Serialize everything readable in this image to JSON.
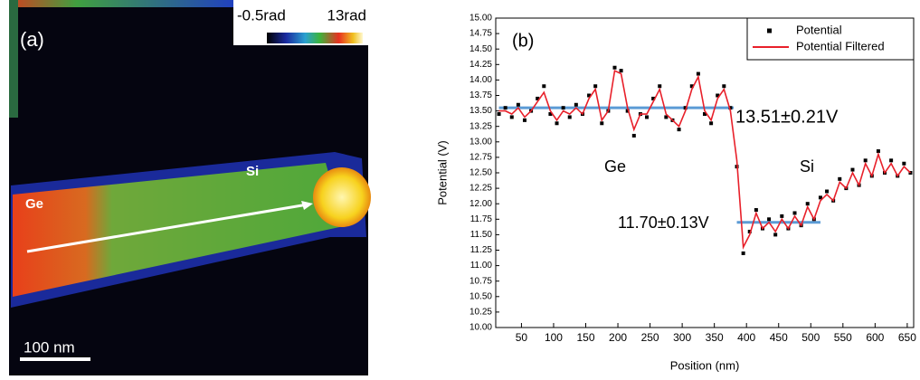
{
  "image_panel": {
    "label": "(a)",
    "region_left": "Ge",
    "region_right": "Si",
    "scale_bar": "100 nm",
    "colorbar_min": "-0.5rad",
    "colorbar_max": "13rad"
  },
  "chart_data": {
    "type": "line",
    "panel_label": "(b)",
    "x_label": "Position (nm)",
    "y_label": "Potential (V)",
    "xlim": [
      10,
      660
    ],
    "ylim": [
      10,
      15
    ],
    "xticks": [
      50,
      100,
      150,
      200,
      250,
      300,
      350,
      400,
      450,
      500,
      550,
      600,
      650
    ],
    "yticks": [
      {
        "value": 10,
        "label": "10.00"
      },
      {
        "value": 10.25,
        "label": "10.25"
      },
      {
        "value": 10.5,
        "label": "10.50"
      },
      {
        "value": 10.75,
        "label": "10.75"
      },
      {
        "value": 11,
        "label": "11.00"
      },
      {
        "value": 11.25,
        "label": "11.25"
      },
      {
        "value": 11.5,
        "label": "11.50"
      },
      {
        "value": 11.75,
        "label": "11.75"
      },
      {
        "value": 12,
        "label": "12.00"
      },
      {
        "value": 12.25,
        "label": "12.25"
      },
      {
        "value": 12.5,
        "label": "12.50"
      },
      {
        "value": 12.75,
        "label": "12.75"
      },
      {
        "value": 13,
        "label": "13.00"
      },
      {
        "value": 13.25,
        "label": "13.25"
      },
      {
        "value": 13.5,
        "label": "13.50"
      },
      {
        "value": 13.75,
        "label": "13.75"
      },
      {
        "value": 14,
        "label": "14.00"
      },
      {
        "value": 14.25,
        "label": "14.25"
      },
      {
        "value": 14.5,
        "label": "14.50"
      },
      {
        "value": 14.75,
        "label": "14.75"
      },
      {
        "value": 15,
        "label": "15.00"
      }
    ],
    "x": [
      15,
      25,
      35,
      45,
      55,
      65,
      75,
      85,
      95,
      105,
      115,
      125,
      135,
      145,
      155,
      165,
      175,
      185,
      195,
      205,
      215,
      225,
      235,
      245,
      255,
      265,
      275,
      285,
      295,
      305,
      315,
      325,
      335,
      345,
      355,
      365,
      375,
      385,
      395,
      405,
      415,
      425,
      435,
      445,
      455,
      465,
      475,
      485,
      495,
      505,
      515,
      525,
      535,
      545,
      555,
      565,
      575,
      585,
      595,
      605,
      615,
      625,
      635,
      645,
      655
    ],
    "series": [
      {
        "name": "Potential",
        "mode": "markers",
        "color": "#000000",
        "values": [
          13.45,
          13.55,
          13.4,
          13.6,
          13.35,
          13.5,
          13.7,
          13.9,
          13.45,
          13.3,
          13.55,
          13.4,
          13.6,
          13.45,
          13.75,
          13.9,
          13.3,
          13.5,
          14.2,
          14.15,
          13.5,
          13.1,
          13.45,
          13.4,
          13.7,
          13.9,
          13.4,
          13.35,
          13.2,
          13.55,
          13.9,
          14.1,
          13.45,
          13.3,
          13.75,
          13.9,
          13.55,
          12.6,
          11.2,
          11.55,
          11.9,
          11.6,
          11.75,
          11.5,
          11.8,
          11.6,
          11.85,
          11.65,
          12.0,
          11.75,
          12.1,
          12.2,
          12.05,
          12.4,
          12.25,
          12.55,
          12.3,
          12.7,
          12.45,
          12.85,
          12.5,
          12.7,
          12.45,
          12.65,
          12.5
        ]
      },
      {
        "name": "Potential Filtered",
        "mode": "line",
        "color": "#e8202a",
        "values": [
          13.5,
          13.5,
          13.45,
          13.55,
          13.4,
          13.5,
          13.65,
          13.8,
          13.5,
          13.35,
          13.5,
          13.45,
          13.55,
          13.45,
          13.7,
          13.85,
          13.35,
          13.5,
          14.15,
          14.1,
          13.55,
          13.2,
          13.45,
          13.45,
          13.65,
          13.85,
          13.45,
          13.35,
          13.25,
          13.5,
          13.85,
          14.05,
          13.5,
          13.35,
          13.7,
          13.85,
          13.5,
          12.7,
          11.3,
          11.5,
          11.85,
          11.6,
          11.7,
          11.55,
          11.75,
          11.6,
          11.8,
          11.65,
          11.95,
          11.75,
          12.05,
          12.15,
          12.05,
          12.35,
          12.25,
          12.5,
          12.3,
          12.65,
          12.45,
          12.8,
          12.5,
          12.65,
          12.45,
          12.6,
          12.5
        ]
      }
    ],
    "reference_lines": [
      {
        "x": [
          15,
          380
        ],
        "y": 13.55,
        "color": "#5b9bd5"
      },
      {
        "x": [
          385,
          515
        ],
        "y": 11.7,
        "color": "#5b9bd5"
      }
    ],
    "annotations": [
      {
        "text": "13.51±0.21V"
      },
      {
        "text": "11.70±0.13V"
      },
      {
        "text": "Ge"
      },
      {
        "text": "Si"
      }
    ],
    "legend": "upper right"
  }
}
